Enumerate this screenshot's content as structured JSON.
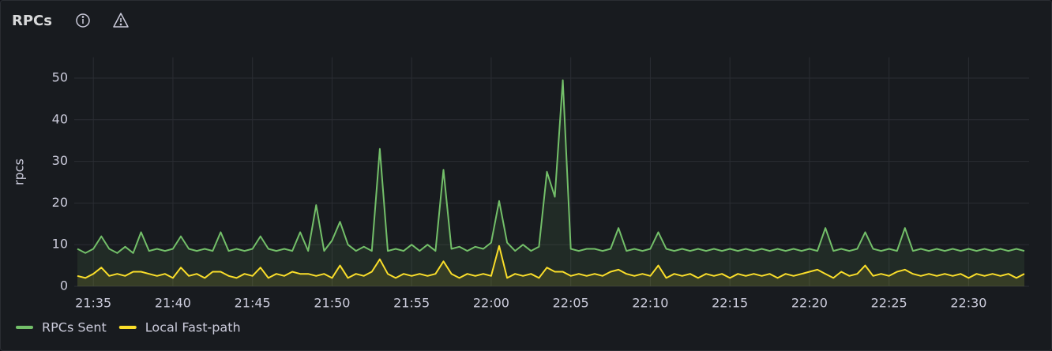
{
  "chart_data": {
    "type": "line",
    "title": "RPCs",
    "y_label": "rpcs",
    "x": [
      1294,
      1294.5,
      1295,
      1295.5,
      1296,
      1296.5,
      1297,
      1297.5,
      1298,
      1298.5,
      1299,
      1299.5,
      1300,
      1300.5,
      1301,
      1301.5,
      1302,
      1302.5,
      1303,
      1303.5,
      1304,
      1304.5,
      1305,
      1305.5,
      1306,
      1306.5,
      1307,
      1307.5,
      1308,
      1308.5,
      1309,
      1309.5,
      1310,
      1310.5,
      1311,
      1311.5,
      1312,
      1312.5,
      1313,
      1313.5,
      1314,
      1314.5,
      1315,
      1315.5,
      1316,
      1316.5,
      1317,
      1317.5,
      1318,
      1318.5,
      1319,
      1319.5,
      1320,
      1320.5,
      1321,
      1321.5,
      1322,
      1322.5,
      1323,
      1323.5,
      1324,
      1324.5,
      1325,
      1325.5,
      1326,
      1326.5,
      1327,
      1327.5,
      1328,
      1328.5,
      1329,
      1329.5,
      1330,
      1330.5,
      1331,
      1331.5,
      1332,
      1332.5,
      1333,
      1333.5,
      1334,
      1334.5,
      1335,
      1335.5,
      1336,
      1336.5,
      1337,
      1337.5,
      1338,
      1338.5,
      1339,
      1339.5,
      1340,
      1340.5,
      1341,
      1341.5,
      1342,
      1342.5,
      1343,
      1343.5,
      1344,
      1344.5,
      1345,
      1345.5,
      1346,
      1346.5,
      1347,
      1347.5,
      1348,
      1348.5,
      1349,
      1349.5,
      1350,
      1350.5,
      1351,
      1351.5,
      1352,
      1352.5,
      1353,
      1353.5
    ],
    "series": [
      {
        "name": "RPCs Sent",
        "color": "#73bf69",
        "values": [
          9,
          8,
          9,
          12,
          9,
          8,
          9.5,
          8,
          13,
          8.5,
          9,
          8.5,
          9,
          12,
          9,
          8.5,
          9,
          8.5,
          13,
          8.5,
          9,
          8.5,
          9,
          12,
          9,
          8.5,
          9,
          8.5,
          13,
          8.5,
          19.5,
          8.5,
          11,
          15.5,
          10,
          8.5,
          9.5,
          8.5,
          33,
          8.5,
          9,
          8.5,
          10,
          8.5,
          10,
          8.5,
          28,
          9,
          9.5,
          8.5,
          9.5,
          9,
          10.5,
          20.5,
          10.5,
          8.5,
          10,
          8.5,
          9.5,
          27.5,
          21.5,
          49.5,
          9,
          8.5,
          9,
          9,
          8.5,
          9,
          14,
          8.5,
          9,
          8.5,
          9,
          13,
          9,
          8.5,
          9,
          8.5,
          9,
          8.5,
          9,
          8.5,
          9,
          8.5,
          9,
          8.5,
          9,
          8.5,
          9,
          8.5,
          9,
          8.5,
          9,
          8.5,
          14,
          8.5,
          9,
          8.5,
          9,
          13,
          9,
          8.5,
          9,
          8.5,
          14,
          8.5,
          9,
          8.5,
          9,
          8.5,
          9,
          8.5,
          9,
          8.5,
          9,
          8.5,
          9,
          8.5,
          9,
          8.5
        ]
      },
      {
        "name": "Local Fast-path",
        "color": "#fade2a",
        "values": [
          2.5,
          2,
          3,
          4.5,
          2.5,
          3,
          2.5,
          3.5,
          3.5,
          3,
          2.5,
          3,
          2,
          4.5,
          2.5,
          3,
          2,
          3.5,
          3.5,
          2.5,
          2,
          3,
          2.5,
          4.5,
          2,
          3,
          2.5,
          3.5,
          3,
          3,
          2.5,
          3,
          2,
          5,
          2,
          3,
          2.5,
          3.5,
          6.5,
          3,
          2,
          3,
          2.5,
          3,
          2.5,
          3,
          6,
          3,
          2,
          3,
          2.5,
          3,
          2.5,
          9.7,
          2,
          3,
          2.5,
          3,
          2,
          4.5,
          3.5,
          3.5,
          2.5,
          3,
          2.5,
          3,
          2.5,
          3.5,
          4,
          3,
          2.5,
          3,
          2.5,
          5,
          2,
          3,
          2.5,
          3,
          2,
          3,
          2.5,
          3,
          2,
          3,
          2.5,
          3,
          2.5,
          3,
          2,
          3,
          2.5,
          3,
          3.5,
          4,
          3,
          2,
          3.5,
          2.5,
          3,
          5,
          2.5,
          3,
          2.5,
          3.5,
          4,
          3,
          2.5,
          3,
          2.5,
          3,
          2.5,
          3,
          2,
          3,
          2.5,
          3,
          2.5,
          3,
          2,
          3
        ]
      }
    ],
    "xlim": [
      1293.8,
      1353.8
    ],
    "xticks": [
      {
        "value": 1295,
        "label": "21:35"
      },
      {
        "value": 1300,
        "label": "21:40"
      },
      {
        "value": 1305,
        "label": "21:45"
      },
      {
        "value": 1310,
        "label": "21:50"
      },
      {
        "value": 1315,
        "label": "21:55"
      },
      {
        "value": 1320,
        "label": "22:00"
      },
      {
        "value": 1325,
        "label": "22:05"
      },
      {
        "value": 1330,
        "label": "22:10"
      },
      {
        "value": 1335,
        "label": "22:15"
      },
      {
        "value": 1340,
        "label": "22:20"
      },
      {
        "value": 1345,
        "label": "22:25"
      },
      {
        "value": 1350,
        "label": "22:30"
      }
    ],
    "ylim": [
      0,
      55
    ],
    "yticks": [
      0,
      10,
      20,
      30,
      40,
      50
    ],
    "grid": true
  }
}
